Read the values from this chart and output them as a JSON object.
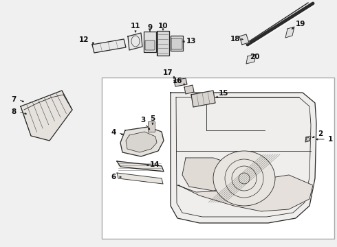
{
  "bg_color": "#f0f0f0",
  "box_color": "#ffffff",
  "line_color": "#2a2a2a",
  "box_border": "#999999",
  "fig_width": 4.9,
  "fig_height": 3.6,
  "dpi": 100
}
